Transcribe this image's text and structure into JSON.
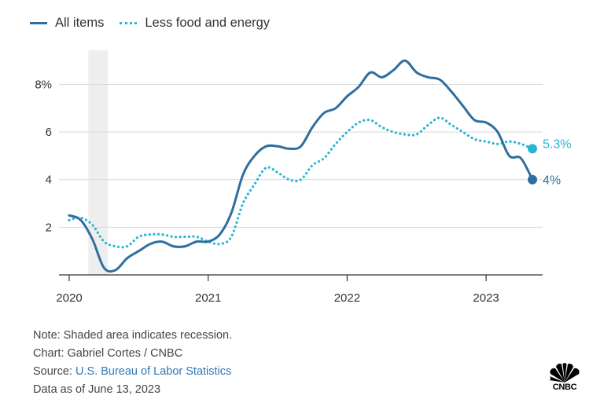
{
  "legend": {
    "all_items": "All items",
    "less_food_energy": "Less food and energy"
  },
  "notes": {
    "note": "Note: Shaded area indicates recession.",
    "chart_credit": "Chart: Gabriel Cortes / CNBC",
    "source_prefix": "Source: ",
    "source_link": "U.S. Bureau of Labor Statistics",
    "data_as_of": "Data as of June 13, 2023"
  },
  "logo": {
    "word": "CNBC"
  },
  "colors": {
    "all_items": "#2f6e9e",
    "less_food_energy": "#27b7d4",
    "recession": "#eeeeee",
    "grid": "#d9d9d9",
    "axis": "#333333"
  },
  "chart_data": {
    "type": "line",
    "title": "",
    "xlabel": "",
    "ylabel": "",
    "ylim": [
      0,
      9.5
    ],
    "xlim": [
      "2020-01",
      "2023-05"
    ],
    "y_ticks": [
      {
        "value": 2,
        "label": "2"
      },
      {
        "value": 4,
        "label": "4"
      },
      {
        "value": 6,
        "label": "6"
      },
      {
        "value": 8,
        "label": "8%"
      }
    ],
    "x_ticks": [
      {
        "value": "2020-01",
        "label": "2020"
      },
      {
        "value": "2021-01",
        "label": "2021"
      },
      {
        "value": "2022-01",
        "label": "2022"
      },
      {
        "value": "2023-01",
        "label": "2023"
      }
    ],
    "grid": "horizontal",
    "legend_position": "top-left",
    "recession": {
      "start": "2020-03",
      "end": "2020-04"
    },
    "x": [
      "2020-01",
      "2020-02",
      "2020-03",
      "2020-04",
      "2020-05",
      "2020-06",
      "2020-07",
      "2020-08",
      "2020-09",
      "2020-10",
      "2020-11",
      "2020-12",
      "2021-01",
      "2021-02",
      "2021-03",
      "2021-04",
      "2021-05",
      "2021-06",
      "2021-07",
      "2021-08",
      "2021-09",
      "2021-10",
      "2021-11",
      "2021-12",
      "2022-01",
      "2022-02",
      "2022-03",
      "2022-04",
      "2022-05",
      "2022-06",
      "2022-07",
      "2022-08",
      "2022-09",
      "2022-10",
      "2022-11",
      "2022-12",
      "2023-01",
      "2023-02",
      "2023-03",
      "2023-04",
      "2023-05"
    ],
    "series": [
      {
        "name": "All items",
        "style": "solid",
        "values": [
          2.5,
          2.3,
          1.5,
          0.3,
          0.2,
          0.7,
          1.0,
          1.3,
          1.4,
          1.2,
          1.2,
          1.4,
          1.4,
          1.7,
          2.6,
          4.2,
          5.0,
          5.4,
          5.4,
          5.3,
          5.4,
          6.2,
          6.8,
          7.0,
          7.5,
          7.9,
          8.5,
          8.3,
          8.6,
          9.0,
          8.5,
          8.3,
          8.2,
          7.7,
          7.1,
          6.5,
          6.4,
          6.0,
          5.0,
          4.9,
          4.0
        ],
        "end_label": "4%"
      },
      {
        "name": "Less food and energy",
        "style": "dotted",
        "values": [
          2.3,
          2.4,
          2.1,
          1.4,
          1.2,
          1.2,
          1.6,
          1.7,
          1.7,
          1.6,
          1.6,
          1.6,
          1.4,
          1.3,
          1.6,
          3.0,
          3.8,
          4.5,
          4.3,
          4.0,
          4.0,
          4.6,
          4.9,
          5.5,
          6.0,
          6.4,
          6.5,
          6.2,
          6.0,
          5.9,
          5.9,
          6.3,
          6.6,
          6.3,
          6.0,
          5.7,
          5.6,
          5.5,
          5.6,
          5.5,
          5.3
        ],
        "end_label": "5.3%"
      }
    ]
  }
}
